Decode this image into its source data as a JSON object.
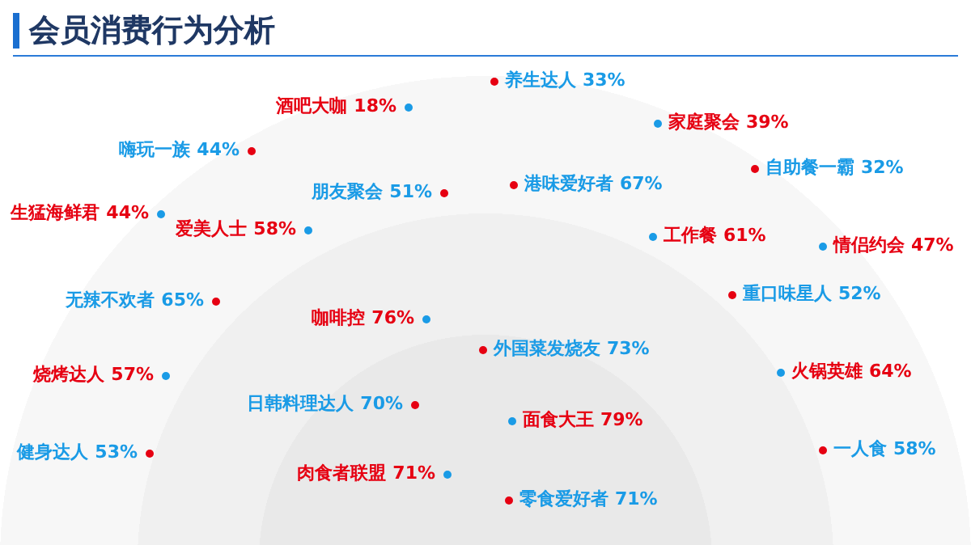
{
  "chart_data": {
    "type": "other",
    "title": "会员消费行为分析",
    "categories": [
      "养生达人",
      "酒吧大咖",
      "家庭聚会",
      "嗨玩一族",
      "自助餐一霸",
      "朋友聚会",
      "港味爱好者",
      "生猛海鲜君",
      "爱美人士",
      "工作餐",
      "情侣约会",
      "无辣不欢者",
      "重口味星人",
      "咖啡控",
      "外国菜发烧友",
      "烧烤达人",
      "火锅英雄",
      "日韩料理达人",
      "面食大王",
      "健身达人",
      "一人食",
      "肉食者联盟",
      "零食爱好者"
    ],
    "values": [
      33,
      18,
      39,
      44,
      32,
      51,
      67,
      44,
      58,
      61,
      47,
      65,
      52,
      76,
      73,
      57,
      64,
      70,
      79,
      53,
      58,
      71,
      71
    ],
    "value_labels": [
      "33%",
      "18%",
      "39%",
      "44%",
      "32%",
      "51%",
      "67%",
      "44%",
      "58%",
      "61%",
      "47%",
      "65%",
      "52%",
      "76%",
      "73%",
      "57%",
      "64%",
      "70%",
      "79%",
      "53%",
      "58%",
      "71%",
      "71%"
    ],
    "colors": [
      "#e60012",
      "#1a9be6",
      "#1a9be6",
      "#e60012",
      "#e60012",
      "#e60012",
      "#e60012",
      "#1a9be6",
      "#1a9be6",
      "#1a9be6",
      "#1a9be6",
      "#e60012",
      "#e60012",
      "#1a9be6",
      "#e60012",
      "#1a9be6",
      "#1a9be6",
      "#e60012",
      "#1a9be6",
      "#e60012",
      "#e60012",
      "#1a9be6",
      "#e60012"
    ]
  }
}
